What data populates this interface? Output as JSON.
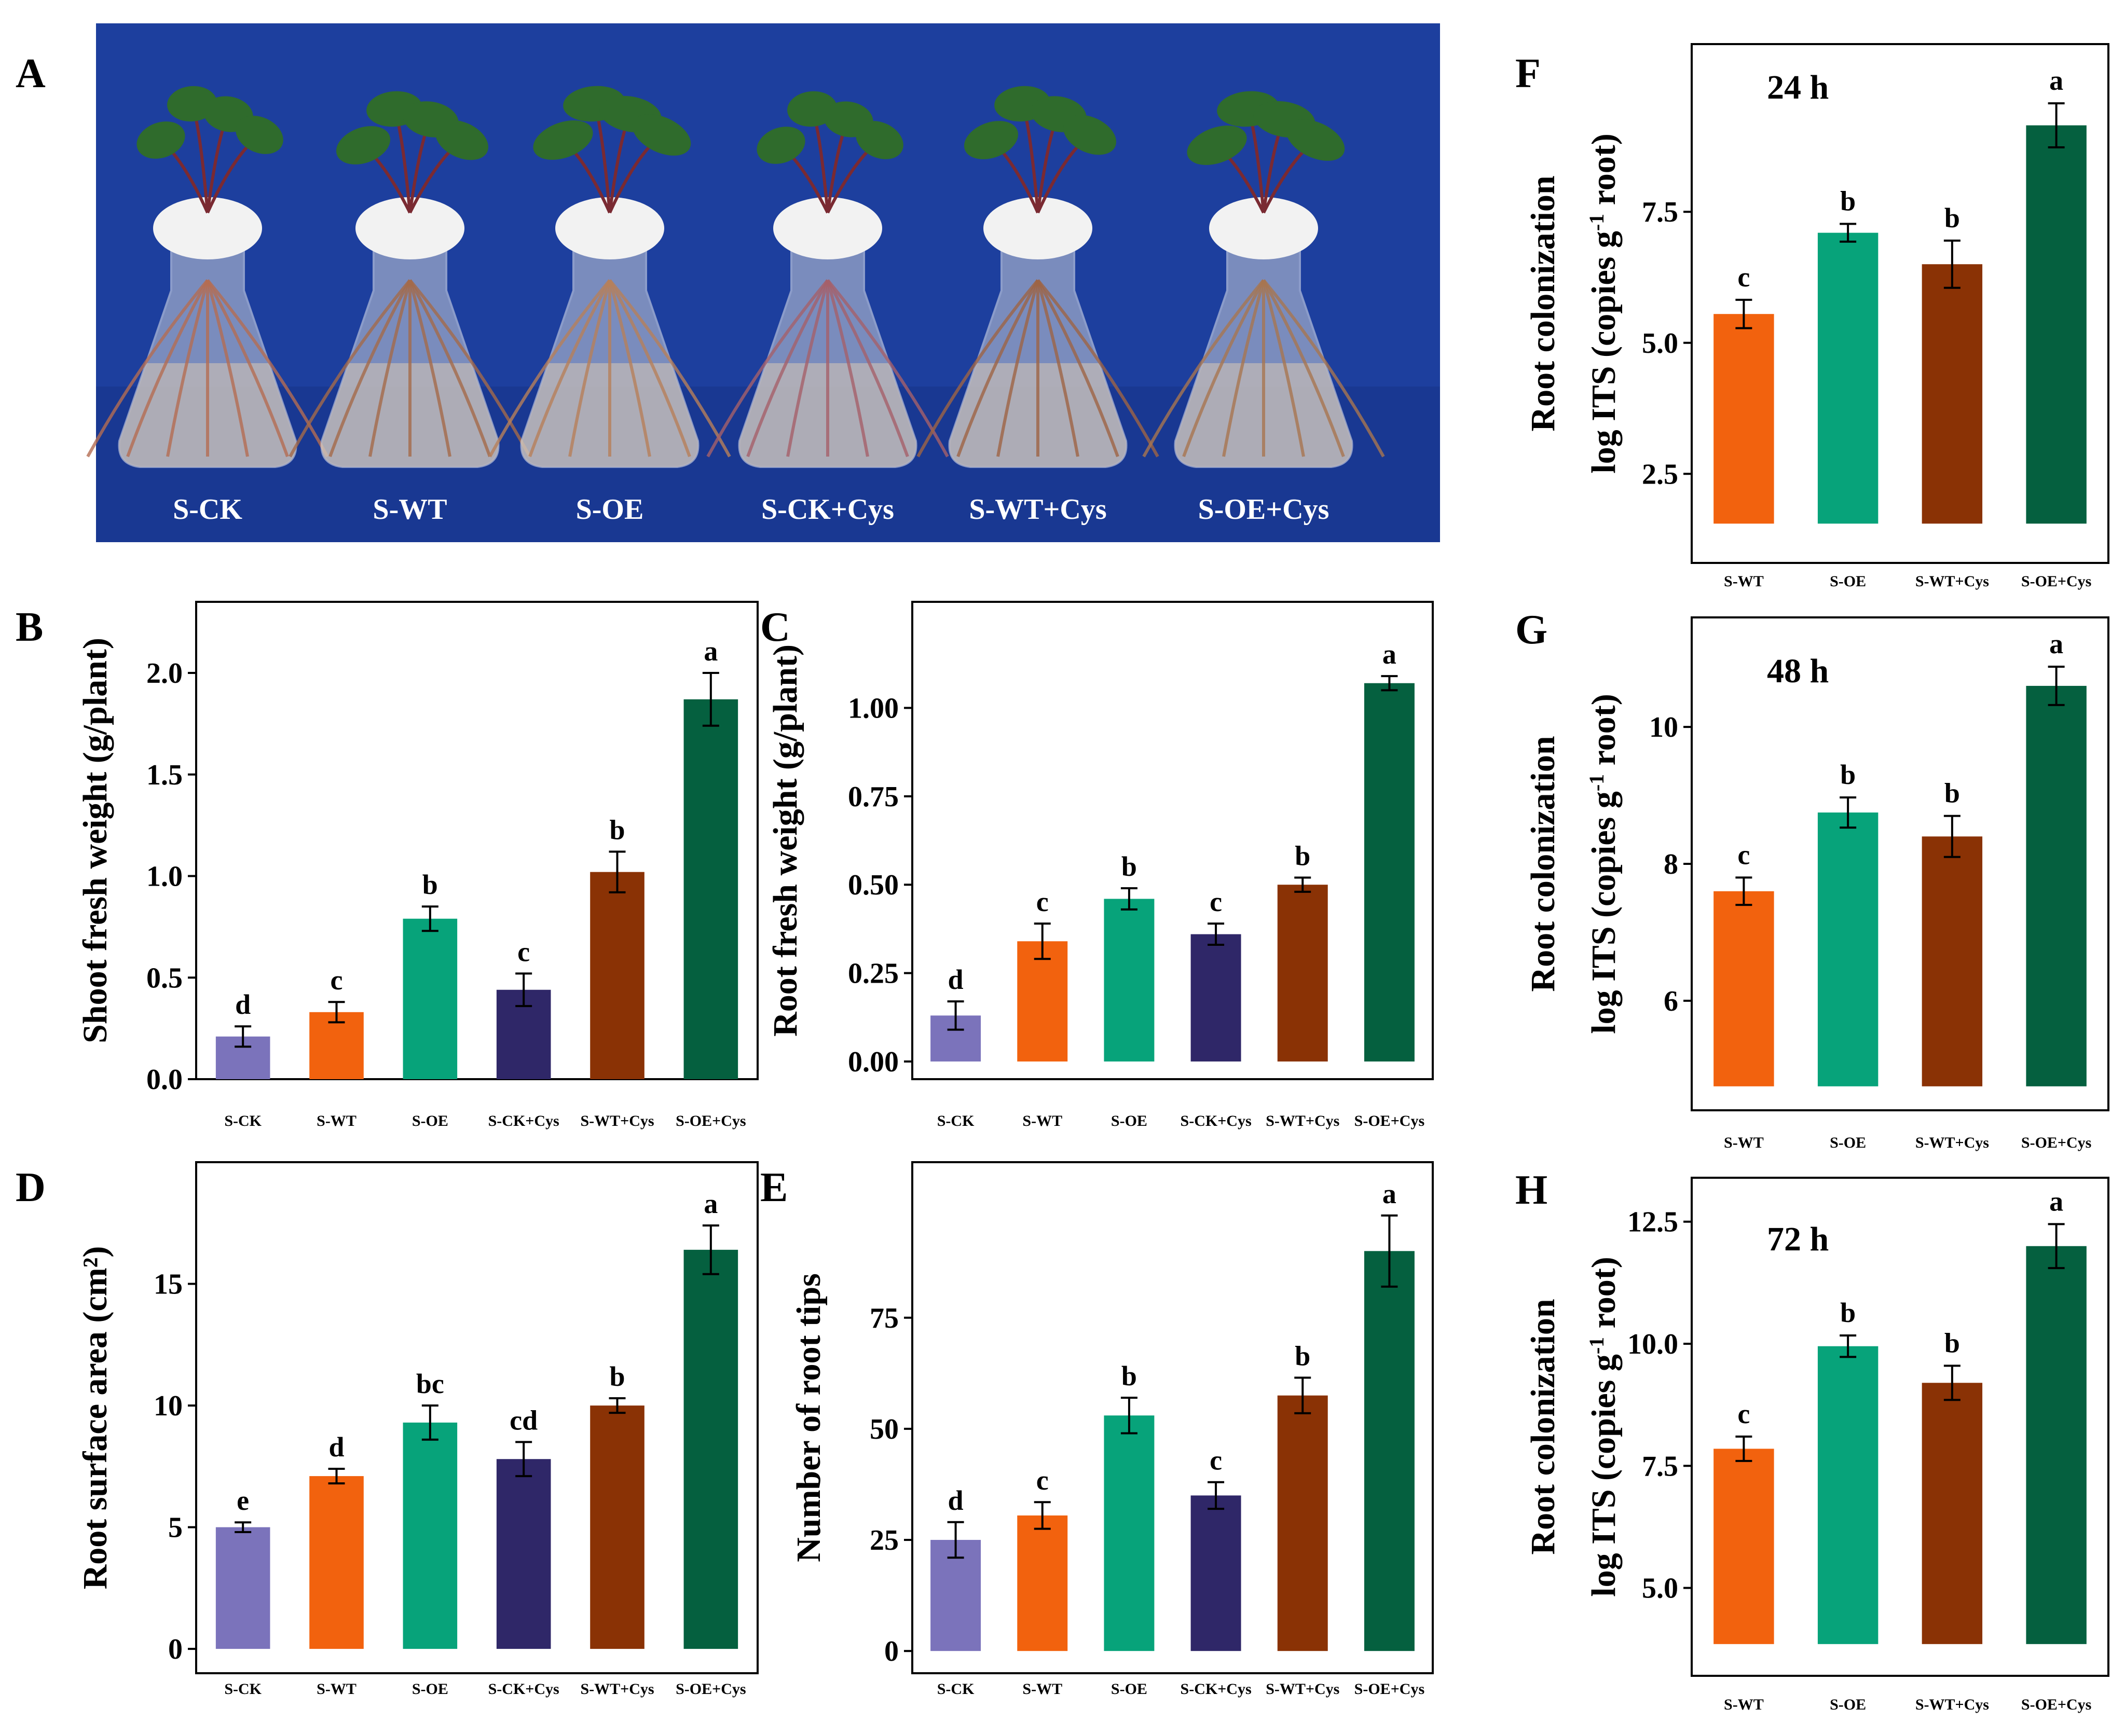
{
  "figure": {
    "panel_a": {
      "letter": "A",
      "sample_labels": [
        "S-CK",
        "S-WT",
        "S-OE",
        "S-CK+Cys",
        "S-WT+Cys",
        "S-OE+Cys"
      ],
      "colors": {
        "background": "#1d3f9e",
        "cotton": "#f2f2f2",
        "leaf": "#2f6b2c"
      }
    }
  },
  "colors": {
    "S-CK": "#7b73bb",
    "S-WT": "#f2620e",
    "S-OE": "#07a37a",
    "S-CK+Cys": "#2f2768",
    "S-WT+Cys": "#8a3205",
    "S-OE+Cys": "#05603f"
  },
  "chart_data": [
    {
      "panel": "B",
      "type": "bar",
      "ylabel": "Shoot fresh weight (g/plant)",
      "categories": [
        "S-CK",
        "S-WT",
        "S-OE",
        "S-CK+Cys",
        "S-WT+Cys",
        "S-OE+Cys"
      ],
      "values": [
        0.21,
        0.33,
        0.79,
        0.44,
        1.02,
        1.87
      ],
      "errors": [
        0.05,
        0.05,
        0.06,
        0.08,
        0.1,
        0.13
      ],
      "letters": [
        "d",
        "c",
        "b",
        "c",
        "b",
        "a"
      ],
      "ylim": [
        0,
        2.35
      ],
      "baseline": 0,
      "yticks": [
        0.0,
        0.5,
        1.0,
        1.5,
        2.0
      ],
      "ytick_labels": [
        "0.0",
        "0.5",
        "1.0",
        "1.5",
        "2.0"
      ],
      "grid": false,
      "legend": "none"
    },
    {
      "panel": "C",
      "type": "bar",
      "ylabel": "Root fresh weight (g/plant)",
      "categories": [
        "S-CK",
        "S-WT",
        "S-OE",
        "S-CK+Cys",
        "S-WT+Cys",
        "S-OE+Cys"
      ],
      "values": [
        0.13,
        0.34,
        0.46,
        0.36,
        0.5,
        1.07
      ],
      "errors": [
        0.04,
        0.05,
        0.03,
        0.03,
        0.02,
        0.02
      ],
      "letters": [
        "d",
        "c",
        "b",
        "c",
        "b",
        "a"
      ],
      "ylim": [
        -0.05,
        1.3
      ],
      "baseline": 0,
      "yticks": [
        0.0,
        0.25,
        0.5,
        0.75,
        1.0
      ],
      "ytick_labels": [
        "0.00",
        "0.25",
        "0.50",
        "0.75",
        "1.00"
      ],
      "grid": false,
      "legend": "none"
    },
    {
      "panel": "D",
      "type": "bar",
      "ylabel": "Root surface area (cm²)",
      "categories": [
        "S-CK",
        "S-WT",
        "S-OE",
        "S-CK+Cys",
        "S-WT+Cys",
        "S-OE+Cys"
      ],
      "values": [
        5.0,
        7.1,
        9.3,
        7.8,
        10.0,
        16.4
      ],
      "errors": [
        0.2,
        0.3,
        0.7,
        0.7,
        0.3,
        1.0
      ],
      "letters": [
        "e",
        "d",
        "bc",
        "cd",
        "b",
        "a"
      ],
      "ylim": [
        -1,
        20
      ],
      "baseline": 0,
      "yticks": [
        0,
        5,
        10,
        15
      ],
      "ytick_labels": [
        "0",
        "5",
        "10",
        "15"
      ],
      "grid": false,
      "legend": "none"
    },
    {
      "panel": "E",
      "type": "bar",
      "ylabel": "Number of root tips",
      "categories": [
        "S-CK",
        "S-WT",
        "S-OE",
        "S-CK+Cys",
        "S-WT+Cys",
        "S-OE+Cys"
      ],
      "values": [
        25,
        30.5,
        53,
        35,
        57.5,
        90
      ],
      "errors": [
        4,
        3,
        4,
        3,
        4,
        8
      ],
      "letters": [
        "d",
        "c",
        "b",
        "c",
        "b",
        "a"
      ],
      "ylim": [
        -5,
        110
      ],
      "baseline": 0,
      "yticks": [
        0,
        25,
        50,
        75
      ],
      "ytick_labels": [
        "0",
        "25",
        "50",
        "75"
      ],
      "grid": false,
      "legend": "none"
    },
    {
      "panel": "F",
      "type": "bar",
      "ylabel": "Root colonization|log ITS (copies g-1 root)",
      "annotation": "24 h",
      "categories": [
        "S-WT",
        "S-OE",
        "S-WT+Cys",
        "S-OE+Cys"
      ],
      "values": [
        5.55,
        7.1,
        6.5,
        9.15
      ],
      "errors": [
        0.27,
        0.17,
        0.45,
        0.42
      ],
      "letters": [
        "c",
        "b",
        "b",
        "a"
      ],
      "ylim": [
        0.8,
        10.7
      ],
      "baseline": 1.55,
      "yticks": [
        2.5,
        5.0,
        7.5
      ],
      "ytick_labels": [
        "2.5",
        "5.0",
        "7.5"
      ],
      "grid": false,
      "legend": "none"
    },
    {
      "panel": "G",
      "type": "bar",
      "ylabel": "Root colonization|log ITS (copies g-1 root)",
      "annotation": "48 h",
      "categories": [
        "S-WT",
        "S-OE",
        "S-WT+Cys",
        "S-OE+Cys"
      ],
      "values": [
        7.6,
        8.75,
        8.4,
        10.6
      ],
      "errors": [
        0.2,
        0.22,
        0.3,
        0.28
      ],
      "letters": [
        "c",
        "b",
        "b",
        "a"
      ],
      "ylim": [
        4.4,
        11.6
      ],
      "baseline": 4.75,
      "yticks": [
        6,
        8,
        10
      ],
      "ytick_labels": [
        "6",
        "8",
        "10"
      ],
      "grid": false,
      "legend": "none"
    },
    {
      "panel": "H",
      "type": "bar",
      "ylabel": "Root colonization|log ITS (copies g-1 root)",
      "annotation": "72 h",
      "categories": [
        "S-WT",
        "S-OE",
        "S-WT+Cys",
        "S-OE+Cys"
      ],
      "values": [
        7.85,
        9.95,
        9.2,
        12.0
      ],
      "errors": [
        0.25,
        0.22,
        0.35,
        0.45
      ],
      "letters": [
        "c",
        "b",
        "b",
        "a"
      ],
      "ylim": [
        3.2,
        13.4
      ],
      "baseline": 3.85,
      "yticks": [
        5.0,
        7.5,
        10.0,
        12.5
      ],
      "ytick_labels": [
        "5.0",
        "7.5",
        "10.0",
        "12.5"
      ],
      "grid": false,
      "legend": "none"
    }
  ]
}
